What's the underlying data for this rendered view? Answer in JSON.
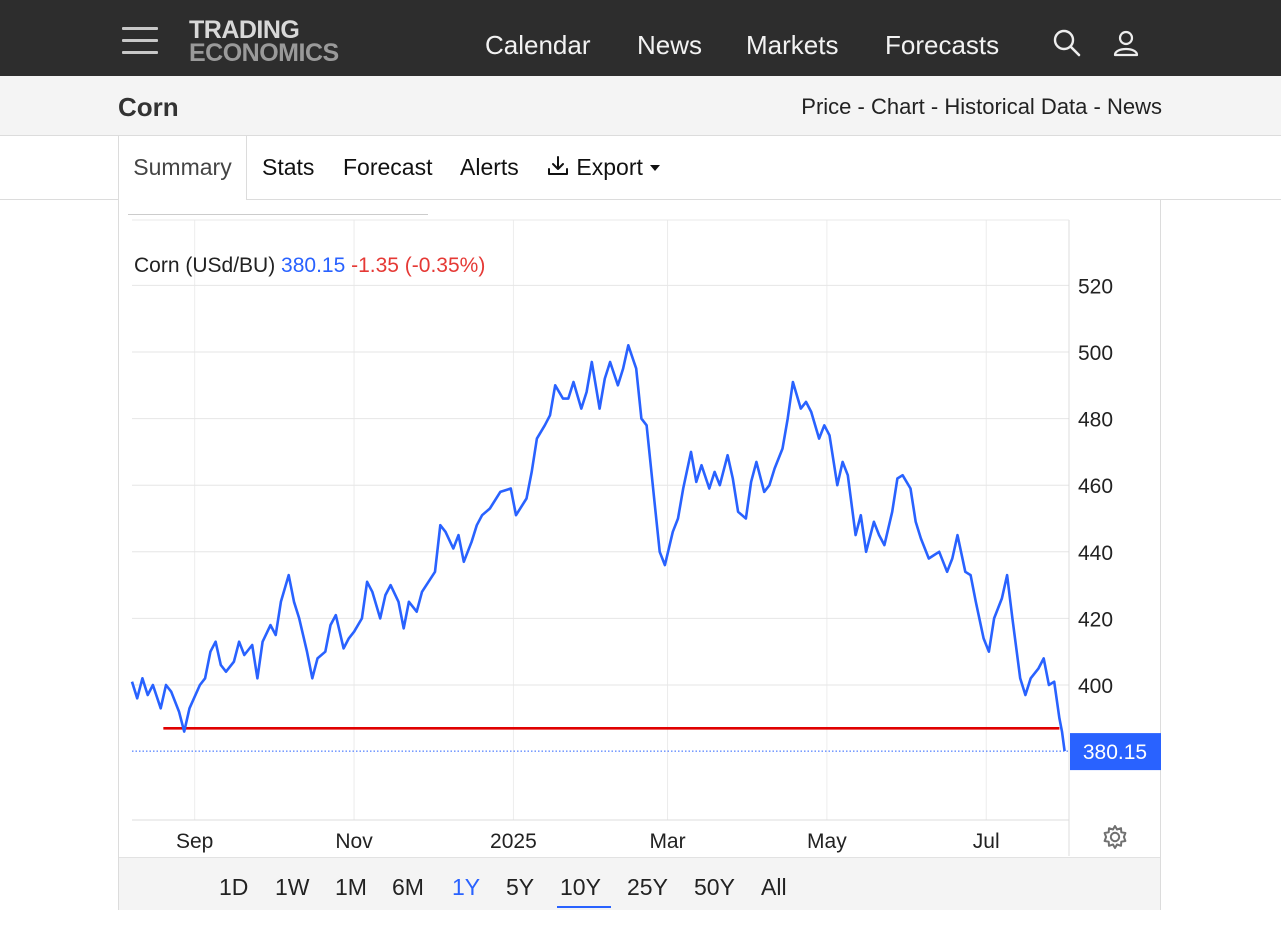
{
  "header": {
    "logo_line1": "TRADING",
    "logo_line2": "ECONOMICS",
    "nav": [
      "Calendar",
      "News",
      "Markets",
      "Forecasts"
    ],
    "icons": [
      "menu-icon",
      "search-icon",
      "user-icon"
    ]
  },
  "page": {
    "title": "Corn",
    "subnav": [
      "Price",
      "Chart",
      "Historical Data",
      "News"
    ]
  },
  "tabs": {
    "summary": "Summary",
    "stats": "Stats",
    "forecast": "Forecast",
    "alerts": "Alerts",
    "export": "Export"
  },
  "quote": {
    "name": "Corn (USd/BU)",
    "price": "380.15",
    "change": "-1.35 (-0.35%)",
    "last_label": "380.15"
  },
  "ranges": [
    "1D",
    "1W",
    "1M",
    "6M",
    "1Y",
    "5Y",
    "10Y",
    "25Y",
    "50Y",
    "All"
  ],
  "selected_range": "1Y",
  "colors": {
    "line": "#2962ff",
    "support_line": "#e00000",
    "negative": "#e53935",
    "topbar": "#2d2d2d"
  },
  "chart_data": {
    "type": "line",
    "title": "Corn (USd/BU)",
    "xlabel": "",
    "ylabel": "",
    "x_tick_labels": [
      "Sep",
      "Nov",
      "2025",
      "Mar",
      "May",
      "Jul"
    ],
    "x_ticks": [
      "2024-09-01",
      "2024-11-01",
      "2025-01-01",
      "2025-03-01",
      "2025-05-01",
      "2025-07-01"
    ],
    "xlim": [
      "2024-08-08",
      "2025-07-30"
    ],
    "ylim": [
      360,
      525
    ],
    "yticks": [
      400,
      420,
      440,
      460,
      480,
      500,
      520
    ],
    "grid": true,
    "last_value": 380.15,
    "support_level": 387,
    "support_range": [
      "2024-08-20",
      "2025-07-29"
    ],
    "series": [
      {
        "values": [
          [
            "2024-08-08",
            401
          ],
          [
            "2024-08-10",
            396
          ],
          [
            "2024-08-12",
            402
          ],
          [
            "2024-08-14",
            397
          ],
          [
            "2024-08-16",
            400
          ],
          [
            "2024-08-19",
            393
          ],
          [
            "2024-08-21",
            400
          ],
          [
            "2024-08-23",
            398
          ],
          [
            "2024-08-26",
            392
          ],
          [
            "2024-08-28",
            386
          ],
          [
            "2024-08-30",
            393
          ],
          [
            "2024-09-03",
            400
          ],
          [
            "2024-09-05",
            402
          ],
          [
            "2024-09-07",
            410
          ],
          [
            "2024-09-09",
            413
          ],
          [
            "2024-09-11",
            406
          ],
          [
            "2024-09-13",
            404
          ],
          [
            "2024-09-16",
            407
          ],
          [
            "2024-09-18",
            413
          ],
          [
            "2024-09-20",
            409
          ],
          [
            "2024-09-23",
            412
          ],
          [
            "2024-09-25",
            402
          ],
          [
            "2024-09-27",
            413
          ],
          [
            "2024-09-30",
            418
          ],
          [
            "2024-10-02",
            415
          ],
          [
            "2024-10-04",
            425
          ],
          [
            "2024-10-07",
            433
          ],
          [
            "2024-10-09",
            425
          ],
          [
            "2024-10-11",
            420
          ],
          [
            "2024-10-14",
            410
          ],
          [
            "2024-10-16",
            402
          ],
          [
            "2024-10-18",
            408
          ],
          [
            "2024-10-21",
            410
          ],
          [
            "2024-10-23",
            418
          ],
          [
            "2024-10-25",
            421
          ],
          [
            "2024-10-28",
            411
          ],
          [
            "2024-10-30",
            414
          ],
          [
            "2024-11-01",
            416
          ],
          [
            "2024-11-04",
            420
          ],
          [
            "2024-11-06",
            431
          ],
          [
            "2024-11-08",
            428
          ],
          [
            "2024-11-11",
            420
          ],
          [
            "2024-11-13",
            427
          ],
          [
            "2024-11-15",
            430
          ],
          [
            "2024-11-18",
            425
          ],
          [
            "2024-11-20",
            417
          ],
          [
            "2024-11-22",
            425
          ],
          [
            "2024-11-25",
            422
          ],
          [
            "2024-11-27",
            428
          ],
          [
            "2024-12-02",
            434
          ],
          [
            "2024-12-04",
            448
          ],
          [
            "2024-12-06",
            446
          ],
          [
            "2024-12-09",
            441
          ],
          [
            "2024-12-11",
            445
          ],
          [
            "2024-12-13",
            437
          ],
          [
            "2024-12-16",
            443
          ],
          [
            "2024-12-18",
            448
          ],
          [
            "2024-12-20",
            451
          ],
          [
            "2024-12-23",
            453
          ],
          [
            "2024-12-27",
            458
          ],
          [
            "2024-12-31",
            459
          ],
          [
            "2025-01-02",
            451
          ],
          [
            "2025-01-06",
            456
          ],
          [
            "2025-01-08",
            464
          ],
          [
            "2025-01-10",
            474
          ],
          [
            "2025-01-13",
            478
          ],
          [
            "2025-01-15",
            481
          ],
          [
            "2025-01-17",
            490
          ],
          [
            "2025-01-20",
            486
          ],
          [
            "2025-01-22",
            486
          ],
          [
            "2025-01-24",
            491
          ],
          [
            "2025-01-27",
            483
          ],
          [
            "2025-01-29",
            488
          ],
          [
            "2025-01-31",
            497
          ],
          [
            "2025-02-03",
            483
          ],
          [
            "2025-02-05",
            492
          ],
          [
            "2025-02-07",
            497
          ],
          [
            "2025-02-10",
            490
          ],
          [
            "2025-02-12",
            495
          ],
          [
            "2025-02-14",
            502
          ],
          [
            "2025-02-17",
            495
          ],
          [
            "2025-02-19",
            480
          ],
          [
            "2025-02-21",
            478
          ],
          [
            "2025-02-24",
            455
          ],
          [
            "2025-02-26",
            440
          ],
          [
            "2025-02-28",
            436
          ],
          [
            "2025-03-03",
            446
          ],
          [
            "2025-03-05",
            450
          ],
          [
            "2025-03-07",
            459
          ],
          [
            "2025-03-10",
            470
          ],
          [
            "2025-03-12",
            461
          ],
          [
            "2025-03-14",
            466
          ],
          [
            "2025-03-17",
            459
          ],
          [
            "2025-03-19",
            464
          ],
          [
            "2025-03-21",
            460
          ],
          [
            "2025-03-24",
            469
          ],
          [
            "2025-03-26",
            462
          ],
          [
            "2025-03-28",
            452
          ],
          [
            "2025-03-31",
            450
          ],
          [
            "2025-04-02",
            461
          ],
          [
            "2025-04-04",
            467
          ],
          [
            "2025-04-07",
            458
          ],
          [
            "2025-04-09",
            460
          ],
          [
            "2025-04-11",
            465
          ],
          [
            "2025-04-14",
            471
          ],
          [
            "2025-04-16",
            480
          ],
          [
            "2025-04-18",
            491
          ],
          [
            "2025-04-21",
            483
          ],
          [
            "2025-04-23",
            485
          ],
          [
            "2025-04-25",
            482
          ],
          [
            "2025-04-28",
            474
          ],
          [
            "2025-04-30",
            478
          ],
          [
            "2025-05-02",
            475
          ],
          [
            "2025-05-05",
            460
          ],
          [
            "2025-05-07",
            467
          ],
          [
            "2025-05-09",
            463
          ],
          [
            "2025-05-12",
            445
          ],
          [
            "2025-05-14",
            451
          ],
          [
            "2025-05-16",
            440
          ],
          [
            "2025-05-19",
            449
          ],
          [
            "2025-05-21",
            445
          ],
          [
            "2025-05-23",
            442
          ],
          [
            "2025-05-26",
            452
          ],
          [
            "2025-05-28",
            462
          ],
          [
            "2025-05-30",
            463
          ],
          [
            "2025-06-02",
            459
          ],
          [
            "2025-06-04",
            449
          ],
          [
            "2025-06-06",
            444
          ],
          [
            "2025-06-09",
            438
          ],
          [
            "2025-06-11",
            439
          ],
          [
            "2025-06-13",
            440
          ],
          [
            "2025-06-16",
            434
          ],
          [
            "2025-06-18",
            438
          ],
          [
            "2025-06-20",
            445
          ],
          [
            "2025-06-23",
            434
          ],
          [
            "2025-06-25",
            433
          ],
          [
            "2025-06-27",
            425
          ],
          [
            "2025-06-30",
            414
          ],
          [
            "2025-07-02",
            410
          ],
          [
            "2025-07-04",
            420
          ],
          [
            "2025-07-07",
            426
          ],
          [
            "2025-07-09",
            433
          ],
          [
            "2025-07-11",
            420
          ],
          [
            "2025-07-14",
            402
          ],
          [
            "2025-07-16",
            397
          ],
          [
            "2025-07-18",
            402
          ],
          [
            "2025-07-21",
            405
          ],
          [
            "2025-07-23",
            408
          ],
          [
            "2025-07-25",
            400
          ],
          [
            "2025-07-27",
            401
          ],
          [
            "2025-07-29",
            390
          ],
          [
            "2025-07-30",
            386
          ],
          [
            "2025-07-31",
            380.15
          ]
        ]
      }
    ]
  }
}
